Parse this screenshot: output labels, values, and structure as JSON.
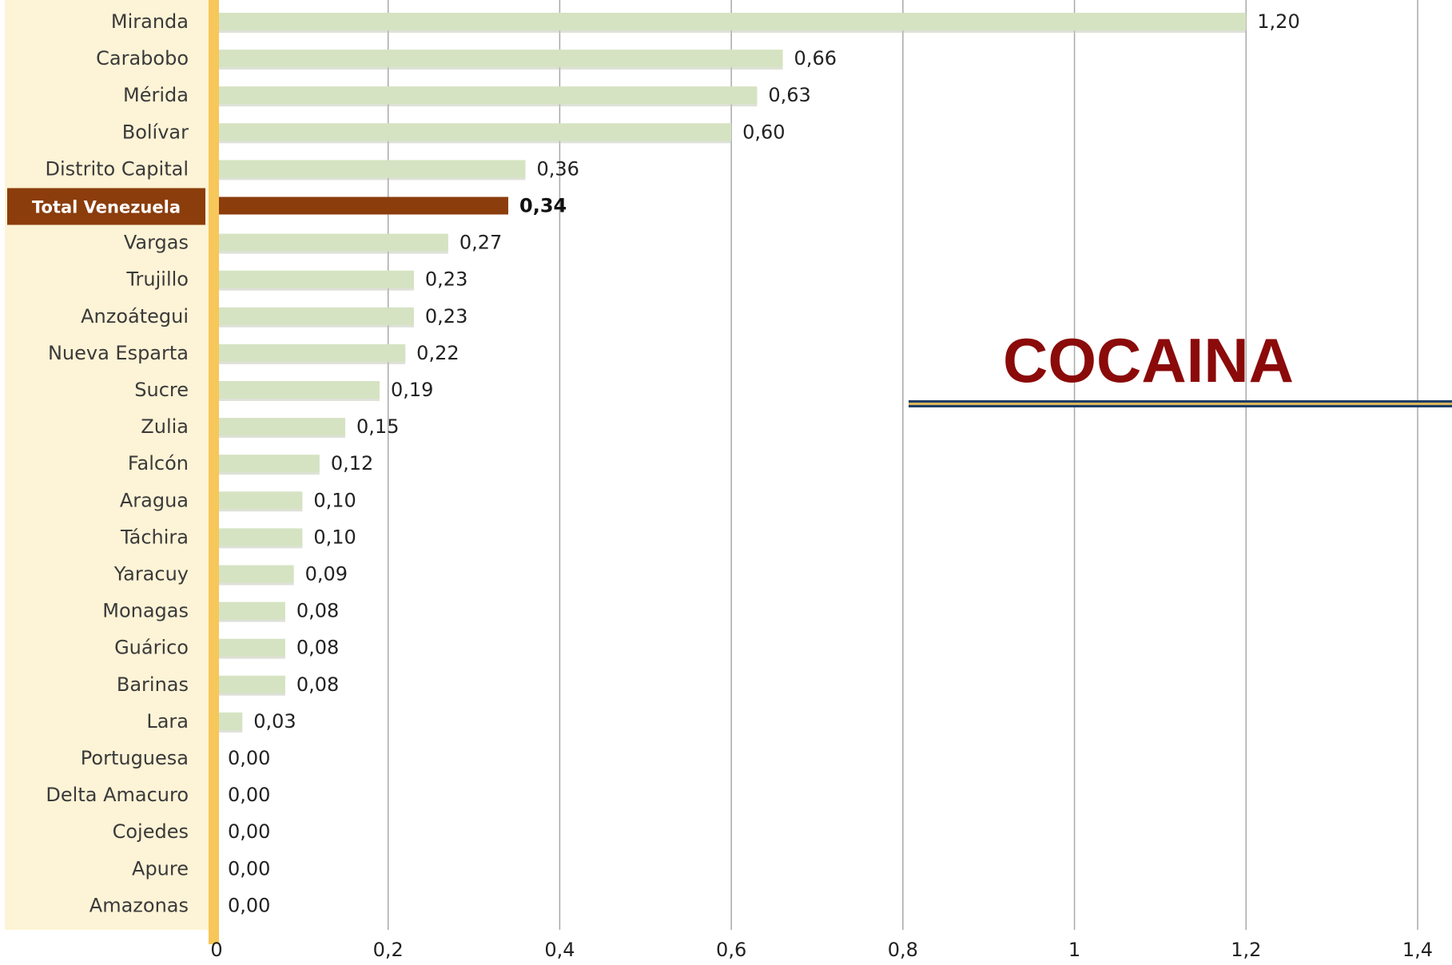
{
  "chart_data": {
    "type": "bar",
    "orientation": "horizontal",
    "title": "COCAINA",
    "xlabel": "",
    "ylabel": "",
    "xlim": [
      0,
      1.4
    ],
    "x_ticks": [
      "0",
      "0,2",
      "0,4",
      "0,6",
      "0,8",
      "1",
      "1,2",
      "1,4"
    ],
    "x_tick_values": [
      0,
      0.2,
      0.4,
      0.6,
      0.8,
      1.0,
      1.2,
      1.4
    ],
    "grid": true,
    "highlight_category": "Total Venezuela",
    "categories": [
      "Miranda",
      "Carabobo",
      "Mérida",
      "Bolívar",
      "Distrito Capital",
      "Total Venezuela",
      "Vargas",
      "Trujillo",
      "Anzoátegui",
      "Nueva Esparta",
      "Sucre",
      "Zulia",
      "Falcón",
      "Aragua",
      "Táchira",
      "Yaracuy",
      "Monagas",
      "Guárico",
      "Barinas",
      "Lara",
      "Portuguesa",
      "Delta Amacuro",
      "Cojedes",
      "Apure",
      "Amazonas"
    ],
    "values": [
      1.2,
      0.66,
      0.63,
      0.6,
      0.36,
      0.34,
      0.27,
      0.23,
      0.23,
      0.22,
      0.19,
      0.15,
      0.12,
      0.1,
      0.1,
      0.09,
      0.08,
      0.08,
      0.08,
      0.03,
      0.0,
      0.0,
      0.0,
      0.0,
      0.0
    ],
    "value_labels": [
      "1,20",
      "0,66",
      "0,63",
      "0,60",
      "0,36",
      "0,34",
      "0,27",
      "0,23",
      "0,23",
      "0,22",
      "0,19",
      "0,15",
      "0,12",
      "0,10",
      "0,10",
      "0,09",
      "0,08",
      "0,08",
      "0,08",
      "0,03",
      "0,00",
      "0,00",
      "0,00",
      "0,00",
      "0,00"
    ]
  },
  "colors": {
    "bar": "#d5e3c2",
    "bar_highlight": "#8b3d0c",
    "label_panel": "#fdf3d6",
    "axis_strip": "#f7c75a",
    "grid": "#a8a8a8",
    "title": "#8b0a0a",
    "title_underline": "#1f3f66",
    "title_underline_accent": "#d9b35a"
  }
}
